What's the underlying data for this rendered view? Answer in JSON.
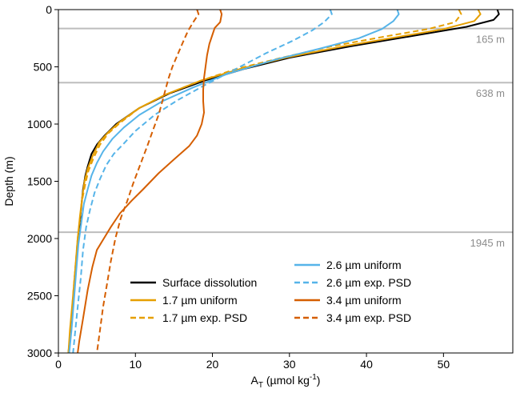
{
  "chart_data": {
    "type": "line",
    "title": "",
    "xlabel_main": "A",
    "xlabel_sub": "T",
    "xlabel_mid": " (µmol kg",
    "xlabel_sup": "-1",
    "xlabel_end": ")",
    "ylabel": "Depth (m)",
    "xlim": [
      0,
      59
    ],
    "ylim": [
      3000,
      0
    ],
    "x_ticks": [
      0,
      10,
      20,
      30,
      40,
      50
    ],
    "y_ticks": [
      0,
      500,
      1000,
      1500,
      2000,
      2500,
      3000
    ],
    "grid": false,
    "legend_position": "lower-right",
    "reference_lines": [
      {
        "depth": 165,
        "label": "165 m"
      },
      {
        "depth": 638,
        "label": "638 m"
      },
      {
        "depth": 1945,
        "label": "1945 m"
      }
    ],
    "series": [
      {
        "name": "Surface dissolution",
        "color": "#000000",
        "style": "solid",
        "points": [
          [
            57.0,
            0
          ],
          [
            57.2,
            40
          ],
          [
            56.5,
            90
          ],
          [
            53,
            150
          ],
          [
            46,
            230
          ],
          [
            38,
            320
          ],
          [
            30,
            420
          ],
          [
            24,
            520
          ],
          [
            19,
            620
          ],
          [
            14.5,
            730
          ],
          [
            10.5,
            860
          ],
          [
            7.5,
            1000
          ],
          [
            6,
            1100
          ],
          [
            5,
            1180
          ],
          [
            4.3,
            1260
          ],
          [
            3.8,
            1370
          ],
          [
            3.5,
            1450
          ],
          [
            3.2,
            1570
          ],
          [
            3.0,
            1700
          ],
          [
            2.6,
            2000
          ],
          [
            2.3,
            2250
          ],
          [
            2.0,
            2500
          ],
          [
            1.6,
            2800
          ],
          [
            1.3,
            3000
          ]
        ]
      },
      {
        "name": "1.7 µm uniform",
        "color": "#E69F00",
        "style": "solid",
        "points": [
          [
            54.5,
            0
          ],
          [
            54.8,
            40
          ],
          [
            54,
            100
          ],
          [
            50,
            170
          ],
          [
            44,
            240
          ],
          [
            37,
            320
          ],
          [
            29.5,
            420
          ],
          [
            23.5,
            520
          ],
          [
            18.5,
            620
          ],
          [
            14,
            740
          ],
          [
            10.5,
            860
          ],
          [
            8,
            980
          ],
          [
            6.5,
            1070
          ],
          [
            5.3,
            1160
          ],
          [
            4.5,
            1270
          ],
          [
            3.8,
            1390
          ],
          [
            3.4,
            1500
          ],
          [
            3.1,
            1640
          ],
          [
            2.8,
            1800
          ],
          [
            2.5,
            2000
          ],
          [
            2.2,
            2250
          ],
          [
            1.9,
            2500
          ],
          [
            1.5,
            2800
          ],
          [
            1.3,
            3000
          ]
        ]
      },
      {
        "name": "1.7 µm exp. PSD",
        "color": "#E69F00",
        "style": "dashed",
        "points": [
          [
            52,
            0
          ],
          [
            52.3,
            40
          ],
          [
            51.5,
            110
          ],
          [
            48,
            170
          ],
          [
            42,
            240
          ],
          [
            35.5,
            320
          ],
          [
            29,
            420
          ],
          [
            23,
            520
          ],
          [
            18.5,
            620
          ],
          [
            14,
            740
          ],
          [
            10.5,
            860
          ],
          [
            8,
            990
          ],
          [
            6.5,
            1080
          ],
          [
            5.4,
            1180
          ],
          [
            4.6,
            1290
          ],
          [
            3.9,
            1410
          ],
          [
            3.5,
            1520
          ],
          [
            3.1,
            1660
          ],
          [
            2.8,
            1820
          ],
          [
            2.5,
            2000
          ],
          [
            2.2,
            2250
          ],
          [
            1.9,
            2500
          ],
          [
            1.6,
            2800
          ],
          [
            1.3,
            3000
          ]
        ]
      },
      {
        "name": "2.6 µm uniform",
        "color": "#56B4E9",
        "style": "solid",
        "points": [
          [
            44,
            0
          ],
          [
            44.2,
            40
          ],
          [
            43.5,
            100
          ],
          [
            42,
            170
          ],
          [
            39,
            250
          ],
          [
            34,
            340
          ],
          [
            28,
            440
          ],
          [
            22,
            560
          ],
          [
            17.5,
            680
          ],
          [
            13.5,
            800
          ],
          [
            10.5,
            920
          ],
          [
            8.5,
            1030
          ],
          [
            7,
            1130
          ],
          [
            5.8,
            1240
          ],
          [
            5,
            1340
          ],
          [
            4.3,
            1450
          ],
          [
            3.8,
            1570
          ],
          [
            3.3,
            1700
          ],
          [
            3.0,
            1850
          ],
          [
            2.6,
            2050
          ],
          [
            2.3,
            2300
          ],
          [
            2.0,
            2550
          ],
          [
            1.7,
            2800
          ],
          [
            1.4,
            3000
          ]
        ]
      },
      {
        "name": "2.6 µm exp. PSD",
        "color": "#56B4E9",
        "style": "dashed",
        "points": [
          [
            35.3,
            0
          ],
          [
            35.5,
            40
          ],
          [
            34.5,
            110
          ],
          [
            33,
            180
          ],
          [
            30.5,
            270
          ],
          [
            27,
            380
          ],
          [
            23,
            520
          ],
          [
            19,
            660
          ],
          [
            15.5,
            790
          ],
          [
            12.5,
            920
          ],
          [
            10,
            1060
          ],
          [
            8.5,
            1170
          ],
          [
            7.2,
            1260
          ],
          [
            6.2,
            1360
          ],
          [
            5.4,
            1480
          ],
          [
            4.7,
            1600
          ],
          [
            4.1,
            1750
          ],
          [
            3.6,
            1900
          ],
          [
            3.2,
            2100
          ],
          [
            2.9,
            2350
          ],
          [
            2.5,
            2600
          ],
          [
            2.2,
            2800
          ],
          [
            1.9,
            3000
          ]
        ]
      },
      {
        "name": "3.4 µm uniform",
        "color": "#D55E00",
        "style": "solid",
        "points": [
          [
            21,
            0
          ],
          [
            21.2,
            40
          ],
          [
            21,
            110
          ],
          [
            20.3,
            160
          ],
          [
            20,
            220
          ],
          [
            19.6,
            300
          ],
          [
            19.3,
            400
          ],
          [
            19.1,
            500
          ],
          [
            18.9,
            600
          ],
          [
            18.8,
            700
          ],
          [
            18.8,
            800
          ],
          [
            18.9,
            900
          ],
          [
            18.6,
            1000
          ],
          [
            18,
            1100
          ],
          [
            17,
            1190
          ],
          [
            15,
            1310
          ],
          [
            13,
            1430
          ],
          [
            11,
            1570
          ],
          [
            9.5,
            1670
          ],
          [
            8,
            1780
          ],
          [
            6.8,
            1900
          ],
          [
            5.9,
            2000
          ],
          [
            5,
            2100
          ],
          [
            4.4,
            2250
          ],
          [
            3.8,
            2450
          ],
          [
            3.2,
            2700
          ],
          [
            2.7,
            2900
          ],
          [
            2.5,
            3000
          ]
        ]
      },
      {
        "name": "3.4 µm exp. PSD",
        "color": "#D55E00",
        "style": "dashed",
        "points": [
          [
            18,
            0
          ],
          [
            18.2,
            40
          ],
          [
            17.5,
            110
          ],
          [
            16.8,
            190
          ],
          [
            16.2,
            280
          ],
          [
            15.5,
            390
          ],
          [
            14.8,
            500
          ],
          [
            14.3,
            600
          ],
          [
            13.9,
            700
          ],
          [
            13.5,
            800
          ],
          [
            13,
            920
          ],
          [
            12.3,
            1050
          ],
          [
            11.5,
            1200
          ],
          [
            10.6,
            1360
          ],
          [
            9.7,
            1520
          ],
          [
            8.9,
            1680
          ],
          [
            8.1,
            1820
          ],
          [
            7.4,
            2000
          ],
          [
            6.8,
            2200
          ],
          [
            6.3,
            2400
          ],
          [
            5.8,
            2600
          ],
          [
            5.4,
            2800
          ],
          [
            5.0,
            3000
          ]
        ]
      }
    ],
    "legend_left": [
      "Surface dissolution",
      "1.7 µm uniform",
      "1.7 µm exp. PSD"
    ],
    "legend_right": [
      "2.6 µm uniform",
      "2.6 µm exp. PSD",
      "3.4 µm uniform",
      "3.4 µm exp. PSD"
    ]
  }
}
